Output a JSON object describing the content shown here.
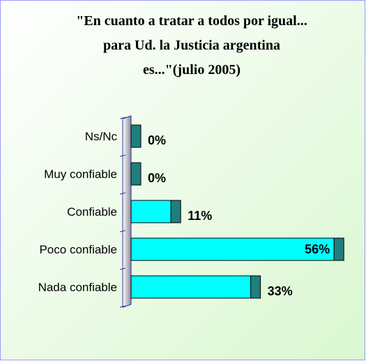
{
  "chart_data": {
    "type": "bar",
    "orientation": "horizontal",
    "title": [
      "\"En cuanto a tratar a todos por igual...",
      "para Ud. la Justicia argentina",
      "es...\"(julio 2005)"
    ],
    "categories": [
      "Ns/Nc",
      "Muy confiable",
      "Confiable",
      "Poco confiable",
      "Nada confiable"
    ],
    "values": [
      0,
      0,
      11,
      56,
      33
    ],
    "value_labels": [
      "0%",
      "0%",
      "11%",
      "56%",
      "33%"
    ],
    "color": "#00ffff",
    "xlim": [
      0,
      60
    ]
  }
}
